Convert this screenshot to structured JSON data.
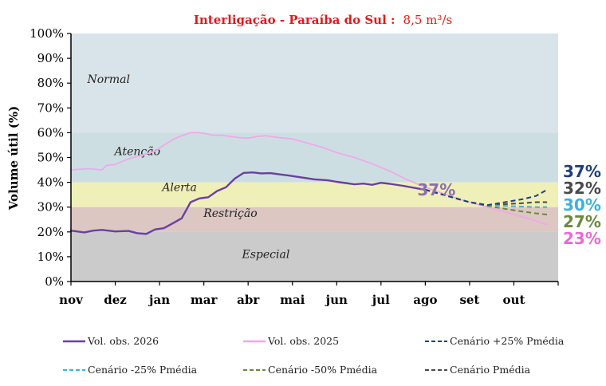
{
  "chart_data": {
    "type": "line",
    "title": "Interligação - Paraíba do Sul :",
    "title_value": "8,5 m³/s",
    "ylabel": "Volume útil (%)",
    "xlabel": "",
    "ylim": [
      0,
      100
    ],
    "yticks": [
      "0%",
      "10%",
      "20%",
      "30%",
      "40%",
      "50%",
      "60%",
      "70%",
      "80%",
      "90%",
      "100%"
    ],
    "xlim": [
      0,
      11
    ],
    "months": [
      "nov",
      "dez",
      "jan",
      "mar",
      "abr",
      "mai",
      "jun",
      "jul",
      "ago",
      "set",
      "out"
    ],
    "month_positions": [
      0,
      1,
      2,
      3,
      4,
      5,
      6,
      7,
      8,
      9,
      10
    ],
    "zones": [
      {
        "label": "Normal",
        "from": 60,
        "to": 100,
        "color": "#d9e3ea",
        "label_x": 0.85,
        "label_y": 80
      },
      {
        "label": "Atenção",
        "from": 40,
        "to": 60,
        "color": "#cddee3",
        "label_x": 1.5,
        "label_y": 51
      },
      {
        "label": "Alerta",
        "from": 30,
        "to": 40,
        "color": "#efefb8",
        "label_x": 2.45,
        "label_y": 36.5
      },
      {
        "label": "Restrição",
        "from": 20,
        "to": 30,
        "color": "#dcc7c3",
        "label_x": 3.6,
        "label_y": 26
      },
      {
        "label": "Especial",
        "from": 0,
        "to": 20,
        "color": "#cbcbcb",
        "label_x": 4.4,
        "label_y": 9.5
      }
    ],
    "series": [
      {
        "name": "Vol. obs. 2026",
        "color": "#6b3fa0",
        "dash": "solid",
        "x": [
          0,
          0.3,
          0.5,
          0.7,
          1.0,
          1.3,
          1.5,
          1.7,
          1.9,
          2.1,
          2.3,
          2.5,
          2.7,
          2.9,
          3.1,
          3.3,
          3.5,
          3.7,
          3.9,
          4.1,
          4.3,
          4.5,
          4.7,
          4.9,
          5.2,
          5.5,
          5.8,
          6.0,
          6.2,
          6.4,
          6.6,
          6.8,
          7.0,
          7.2,
          7.5,
          7.8,
          8.0
        ],
        "y": [
          20.5,
          19.8,
          20.5,
          20.8,
          20.2,
          20.4,
          19.5,
          19.2,
          21.0,
          21.5,
          23.5,
          25.5,
          32.0,
          33.5,
          34.0,
          36.5,
          38.0,
          41.5,
          43.8,
          44.0,
          43.6,
          43.7,
          43.2,
          42.8,
          42.0,
          41.2,
          40.8,
          40.2,
          39.7,
          39.2,
          39.5,
          39.0,
          39.8,
          39.4,
          38.6,
          37.6,
          37.0
        ]
      },
      {
        "name": "Vol. obs. 2025",
        "color": "#f0a8e8",
        "dash": "solid",
        "x": [
          0,
          0.4,
          0.7,
          0.8,
          1.0,
          1.3,
          1.6,
          1.9,
          2.1,
          2.3,
          2.5,
          2.7,
          2.85,
          3.0,
          3.2,
          3.4,
          3.6,
          3.8,
          4.0,
          4.2,
          4.4,
          4.7,
          5.0,
          5.3,
          5.7,
          6.0,
          6.4,
          6.8,
          7.2,
          7.6,
          8.0,
          8.4,
          8.8,
          9.2,
          9.6,
          10.0,
          10.4,
          10.75
        ],
        "y": [
          45.0,
          45.5,
          45.0,
          46.8,
          47.2,
          49.5,
          51.0,
          52.5,
          55.0,
          57.2,
          58.8,
          60.0,
          60.0,
          59.8,
          59.0,
          59.0,
          58.5,
          58.0,
          57.8,
          58.5,
          58.8,
          58.0,
          57.5,
          56.0,
          54.0,
          52.0,
          50.0,
          47.5,
          44.5,
          41.0,
          38.0,
          35.5,
          33.0,
          31.0,
          29.0,
          27.0,
          25.0,
          23.0
        ]
      },
      {
        "name": "Cenário +25% Pmédia",
        "color": "#1f3f7a",
        "dash": "dashed",
        "x": [
          8.0,
          8.5,
          9.0,
          9.4,
          9.8,
          10.2,
          10.5,
          10.75
        ],
        "y": [
          37.0,
          34.5,
          32.0,
          30.8,
          32.0,
          33.2,
          34.5,
          37.0
        ]
      },
      {
        "name": "Cenário -25% Pmédia",
        "color": "#3fb0dc",
        "dash": "dashed",
        "x": [
          8.0,
          8.5,
          9.0,
          9.4,
          9.8,
          10.2,
          10.5,
          10.75
        ],
        "y": [
          37.0,
          34.5,
          32.0,
          30.8,
          30.5,
          30.2,
          30.0,
          30.0
        ]
      },
      {
        "name": "Cenário -50% Pmédia",
        "color": "#6a8a3a",
        "dash": "dashed",
        "x": [
          8.0,
          8.5,
          9.0,
          9.4,
          9.8,
          10.2,
          10.5,
          10.75
        ],
        "y": [
          37.0,
          34.5,
          32.0,
          30.5,
          29.3,
          28.2,
          27.5,
          27.0
        ]
      },
      {
        "name": "Cenário Pmédia",
        "color": "#4a4a4a",
        "dash": "dashed",
        "x": [
          8.0,
          8.5,
          9.0,
          9.4,
          9.8,
          10.2,
          10.5,
          10.75
        ],
        "y": [
          37.0,
          34.5,
          32.0,
          30.8,
          31.2,
          31.6,
          32.0,
          32.0
        ]
      }
    ],
    "annotations": [
      {
        "text": "37%",
        "color": "#8a6fb0",
        "x": 8.0,
        "y": 37.0,
        "kind": "current"
      },
      {
        "text": "37%",
        "color": "#1f3f7a",
        "kind": "end"
      },
      {
        "text": "32%",
        "color": "#4a4a4a",
        "kind": "end"
      },
      {
        "text": "30%",
        "color": "#3fb0dc",
        "kind": "end"
      },
      {
        "text": "27%",
        "color": "#6a8a3a",
        "kind": "end"
      },
      {
        "text": "23%",
        "color": "#e86ad8",
        "kind": "end"
      }
    ],
    "legend": {
      "placement": "bottom",
      "entries": [
        {
          "label": "Vol. obs. 2026",
          "color": "#6b3fa0",
          "dash": "solid"
        },
        {
          "label": "Vol. obs. 2025",
          "color": "#f0a8e8",
          "dash": "solid"
        },
        {
          "label": "Cenário +25% Pmédia",
          "color": "#1f3f7a",
          "dash": "dashed"
        },
        {
          "label": "Cenário -25% Pmédia",
          "color": "#3fb0dc",
          "dash": "dashed"
        },
        {
          "label": "Cenário -50% Pmédia",
          "color": "#6a8a3a",
          "dash": "dashed"
        },
        {
          "label": "Cenário Pmédia",
          "color": "#4a4a4a",
          "dash": "dashed"
        }
      ]
    },
    "colors": {
      "title": "#e01b1b",
      "axis": "#000000"
    }
  }
}
